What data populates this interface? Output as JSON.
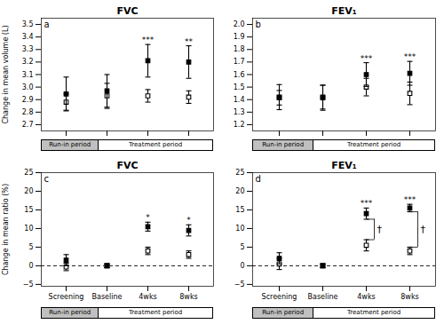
{
  "chart_data": [
    {
      "type": "scatter",
      "title": "FVC",
      "panel_label": "a",
      "ylabel": "Change in mean volume (L)",
      "categories": [
        null,
        null,
        null,
        null
      ],
      "tick_labels": "y",
      "ylim": [
        2.65,
        3.55
      ],
      "yticks": [
        2.7,
        2.8,
        2.9,
        {
          "value": 3.0,
          "label": "3.0"
        },
        3.1,
        3.2,
        3.3,
        3.4,
        3.5
      ],
      "period_labels": [
        "Run-in period",
        "Treatment period"
      ],
      "series": [
        {
          "color": "black",
          "marker": "open_square",
          "values": [
            2.88,
            2.93,
            2.93,
            2.92
          ],
          "errors": [
            0.065,
            0.1,
            0.05,
            0.05
          ]
        },
        {
          "color": "black",
          "marker": "square",
          "values": [
            2.945,
            2.97,
            3.21,
            3.2
          ],
          "errors": [
            0.135,
            0.13,
            0.13,
            0.13
          ],
          "significance": [
            null,
            null,
            "***",
            "**"
          ]
        }
      ]
    },
    {
      "type": "scatter",
      "title": "FEV₁",
      "panel_label": "b",
      "categories": [
        null,
        null,
        null,
        null
      ],
      "tick_labels": "y",
      "ylim": [
        1.15,
        2.05
      ],
      "yticks": [
        1.2,
        1.3,
        1.4,
        1.5,
        1.6,
        1.7,
        1.8,
        1.9,
        {
          "value": 2.0,
          "label": "2.0"
        }
      ],
      "period_labels": [
        "Run-in period",
        "Treatment period"
      ],
      "series": [
        {
          "color": "black",
          "marker": "open_square",
          "values": [
            1.415,
            1.42,
            1.5,
            1.45
          ],
          "errors": [
            0.058,
            0.095,
            0.07,
            0.09
          ]
        },
        {
          "color": "black",
          "marker": "square",
          "values": [
            1.42,
            1.415,
            1.6,
            1.61
          ],
          "errors": [
            0.1,
            0.1,
            0.095,
            0.095
          ],
          "significance": [
            null,
            null,
            "***",
            "***"
          ]
        }
      ]
    },
    {
      "type": "scatter",
      "title": "FVC",
      "panel_label": "c",
      "ylabel": "Change in mean ratio (%)",
      "categories": [
        "Screening",
        "Baseline",
        "4wks",
        "8wks"
      ],
      "ylim": [
        -5.5,
        25
      ],
      "yticks": [
        -5,
        0,
        5,
        10,
        15,
        20,
        25
      ],
      "reference_lines": [
        {
          "y": 0,
          "line_style": "dashed"
        }
      ],
      "period_labels": [
        "Run-in period",
        "Treatment period"
      ],
      "series": [
        {
          "color": "black",
          "marker": "open_square",
          "values": [
            -0.3,
            0.0,
            4.0,
            3.0
          ],
          "errors": [
            1.0,
            0.5,
            1.0,
            1.0
          ]
        },
        {
          "color": "black",
          "marker": "square",
          "values": [
            1.5,
            0.0,
            10.5,
            9.5
          ],
          "errors": [
            1.5,
            0.5,
            1.2,
            1.5
          ],
          "significance": [
            null,
            null,
            "*",
            "*"
          ]
        }
      ]
    },
    {
      "type": "scatter",
      "title": "FEV₁",
      "panel_label": "d",
      "categories": [
        "Screening",
        "Baseline",
        "4wks",
        "8wks"
      ],
      "ylim": [
        -5.5,
        25
      ],
      "yticks": [
        -5,
        0,
        5,
        10,
        15,
        20,
        25
      ],
      "reference_lines": [
        {
          "y": 0,
          "line_style": "dashed"
        }
      ],
      "period_labels": [
        "Run-in period",
        "Treatment period"
      ],
      "between_significance": [
        null,
        null,
        "†",
        "†"
      ],
      "series": [
        {
          "color": "black",
          "marker": "open_square",
          "values": [
            0.5,
            0.0,
            5.5,
            4.0
          ],
          "errors": [
            1.5,
            0.5,
            1.5,
            1.0
          ]
        },
        {
          "color": "black",
          "marker": "square",
          "values": [
            2.0,
            0.0,
            14.0,
            15.5
          ],
          "errors": [
            1.5,
            0.5,
            1.5,
            1.0
          ],
          "significance": [
            null,
            null,
            "***",
            "***"
          ]
        }
      ]
    }
  ]
}
